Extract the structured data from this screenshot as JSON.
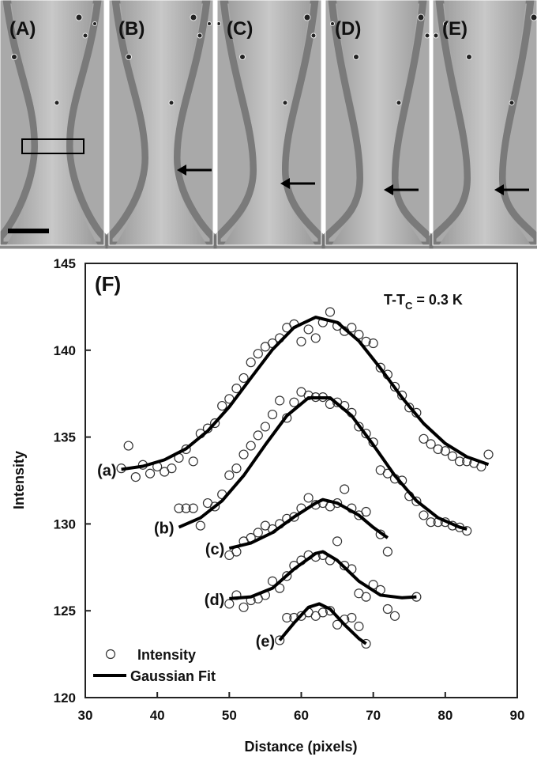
{
  "image_panels": [
    "(A)",
    "(B)",
    "(C)",
    "(D)",
    "(E)"
  ],
  "chart_data": {
    "type": "scatter",
    "panel_label": "(F)",
    "condition": {
      "text": "T-T",
      "subscript": "C",
      "suffix": " = 0.3 K"
    },
    "x_label": "Distance (pixels)",
    "y_label": "Intensity",
    "xlim": [
      30,
      90
    ],
    "xticks": [
      30,
      40,
      50,
      60,
      70,
      80,
      90
    ],
    "ylim": [
      120,
      145
    ],
    "yticks": [
      120,
      125,
      130,
      135,
      140,
      145
    ],
    "legend": "lower left",
    "curve_labels": [
      "(a)",
      "(b)",
      "(c)",
      "(d)",
      "(e)"
    ],
    "series": [
      {
        "name": "Intensity",
        "color": "#333333",
        "marker": "open-circle",
        "x": [
          35,
          36,
          37,
          38,
          39,
          40,
          41,
          42,
          43,
          44,
          45,
          46,
          47,
          48,
          49,
          50,
          51,
          52,
          53,
          54,
          55,
          56,
          57,
          58,
          59,
          60,
          61,
          62,
          63,
          64,
          65,
          66,
          67,
          68,
          69,
          70,
          71,
          72,
          73,
          74,
          75,
          76,
          77,
          78,
          79,
          80,
          81,
          82,
          83,
          84,
          85,
          86,
          43,
          44,
          45,
          46,
          47,
          48,
          49,
          50,
          51,
          52,
          53,
          54,
          55,
          56,
          57,
          58,
          59,
          60,
          61,
          62,
          63,
          64,
          65,
          66,
          67,
          68,
          69,
          70,
          71,
          72,
          73,
          74,
          75,
          76,
          77,
          78,
          79,
          80,
          81,
          82,
          83,
          50,
          51,
          52,
          53,
          54,
          55,
          56,
          57,
          58,
          59,
          60,
          61,
          62,
          63,
          64,
          65,
          66,
          67,
          68,
          69,
          71,
          72,
          50,
          51,
          52,
          53,
          54,
          55,
          56,
          57,
          58,
          59,
          60,
          61,
          62,
          63,
          64,
          65,
          66,
          67,
          68,
          69,
          70,
          71,
          72,
          73,
          76,
          57,
          58,
          59,
          60,
          61,
          62,
          63,
          64,
          65,
          66,
          67,
          68,
          69
        ],
        "values": [
          133.2,
          134.5,
          132.7,
          133.4,
          132.9,
          133.3,
          133.0,
          133.2,
          133.8,
          134.3,
          133.6,
          135.2,
          135.5,
          135.8,
          136.8,
          137.2,
          137.8,
          138.4,
          139.3,
          139.8,
          140.2,
          140.4,
          140.7,
          141.3,
          141.5,
          140.5,
          141.2,
          140.7,
          141.6,
          142.2,
          141.4,
          141.1,
          141.3,
          140.9,
          140.5,
          140.4,
          139.0,
          138.6,
          137.9,
          137.4,
          136.7,
          136.4,
          134.9,
          134.6,
          134.3,
          134.2,
          133.9,
          133.6,
          133.6,
          133.5,
          133.3,
          134.0,
          130.9,
          130.9,
          130.9,
          129.9,
          131.2,
          131.0,
          131.7,
          132.8,
          133.2,
          134.0,
          134.5,
          135.1,
          135.6,
          136.3,
          137.1,
          136.1,
          137.0,
          137.6,
          137.4,
          137.3,
          137.3,
          136.9,
          137.0,
          136.8,
          136.4,
          135.6,
          135.2,
          134.7,
          133.1,
          132.9,
          132.6,
          132.5,
          131.6,
          131.3,
          130.5,
          130.1,
          130.1,
          130.1,
          129.9,
          129.8,
          129.6,
          128.2,
          128.4,
          129.0,
          129.2,
          129.5,
          129.9,
          129.7,
          130.0,
          130.3,
          130.4,
          130.9,
          131.5,
          131.1,
          131.2,
          131.0,
          131.2,
          132.0,
          130.9,
          130.5,
          130.7,
          129.4,
          128.4,
          125.4,
          125.9,
          125.2,
          125.6,
          125.7,
          125.9,
          126.7,
          126.3,
          127.0,
          127.6,
          127.9,
          128.2,
          128.1,
          128.2,
          127.9,
          129.0,
          127.6,
          127.4,
          126.0,
          125.8,
          126.5,
          126.2,
          125.1,
          124.7,
          125.8,
          123.3,
          124.6,
          124.6,
          124.7,
          124.9,
          124.7,
          124.9,
          125.0,
          124.2,
          124.5,
          124.6,
          124.1,
          123.1
        ]
      },
      {
        "name": "Gaussian Fit",
        "color": "#000000",
        "marker": "line",
        "x": [
          35,
          38,
          41,
          44,
          47,
          50,
          53,
          56,
          59,
          62,
          65,
          68,
          71,
          74,
          77,
          80,
          83,
          86,
          null,
          43,
          46,
          49,
          52,
          55,
          58,
          61,
          64,
          67,
          70,
          73,
          76,
          79,
          82,
          83,
          null,
          50,
          53,
          56,
          59,
          62,
          63,
          65,
          68,
          70,
          72,
          null,
          50,
          53,
          56,
          59,
          62,
          63,
          65,
          68,
          71,
          74,
          76,
          null,
          57,
          59,
          61,
          62.5,
          64,
          66,
          68,
          69
        ],
        "values": [
          133.14,
          133.32,
          133.69,
          134.33,
          135.35,
          136.74,
          138.4,
          140.04,
          141.31,
          141.9,
          141.6,
          140.53,
          138.96,
          137.27,
          135.78,
          134.63,
          133.86,
          133.42,
          null,
          129.81,
          130.35,
          131.33,
          132.78,
          134.55,
          136.23,
          137.26,
          137.26,
          136.23,
          134.55,
          132.78,
          131.33,
          130.35,
          129.81,
          129.7,
          null,
          128.6,
          128.9,
          129.5,
          130.4,
          131.2,
          131.4,
          131.2,
          130.5,
          129.8,
          129.2,
          null,
          125.7,
          125.8,
          126.3,
          127.4,
          128.3,
          128.4,
          127.9,
          126.7,
          125.9,
          125.75,
          125.8,
          null,
          123.3,
          124.3,
          125.2,
          125.4,
          125.1,
          124.2,
          123.4,
          123.1
        ]
      }
    ]
  }
}
